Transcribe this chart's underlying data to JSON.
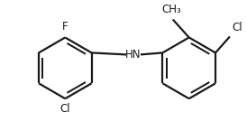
{
  "bg_color": "#ffffff",
  "line_color": "#1a1a1a",
  "line_width": 1.6,
  "font_size": 8.5,
  "label_F": "F",
  "label_Cl_left": "Cl",
  "label_Cl_right": "Cl",
  "label_HN": "HN",
  "label_CH3": "CH₃",
  "figsize": [
    2.74,
    1.55
  ],
  "dpi": 100,
  "xlim": [
    0,
    274
  ],
  "ylim": [
    0,
    155
  ]
}
